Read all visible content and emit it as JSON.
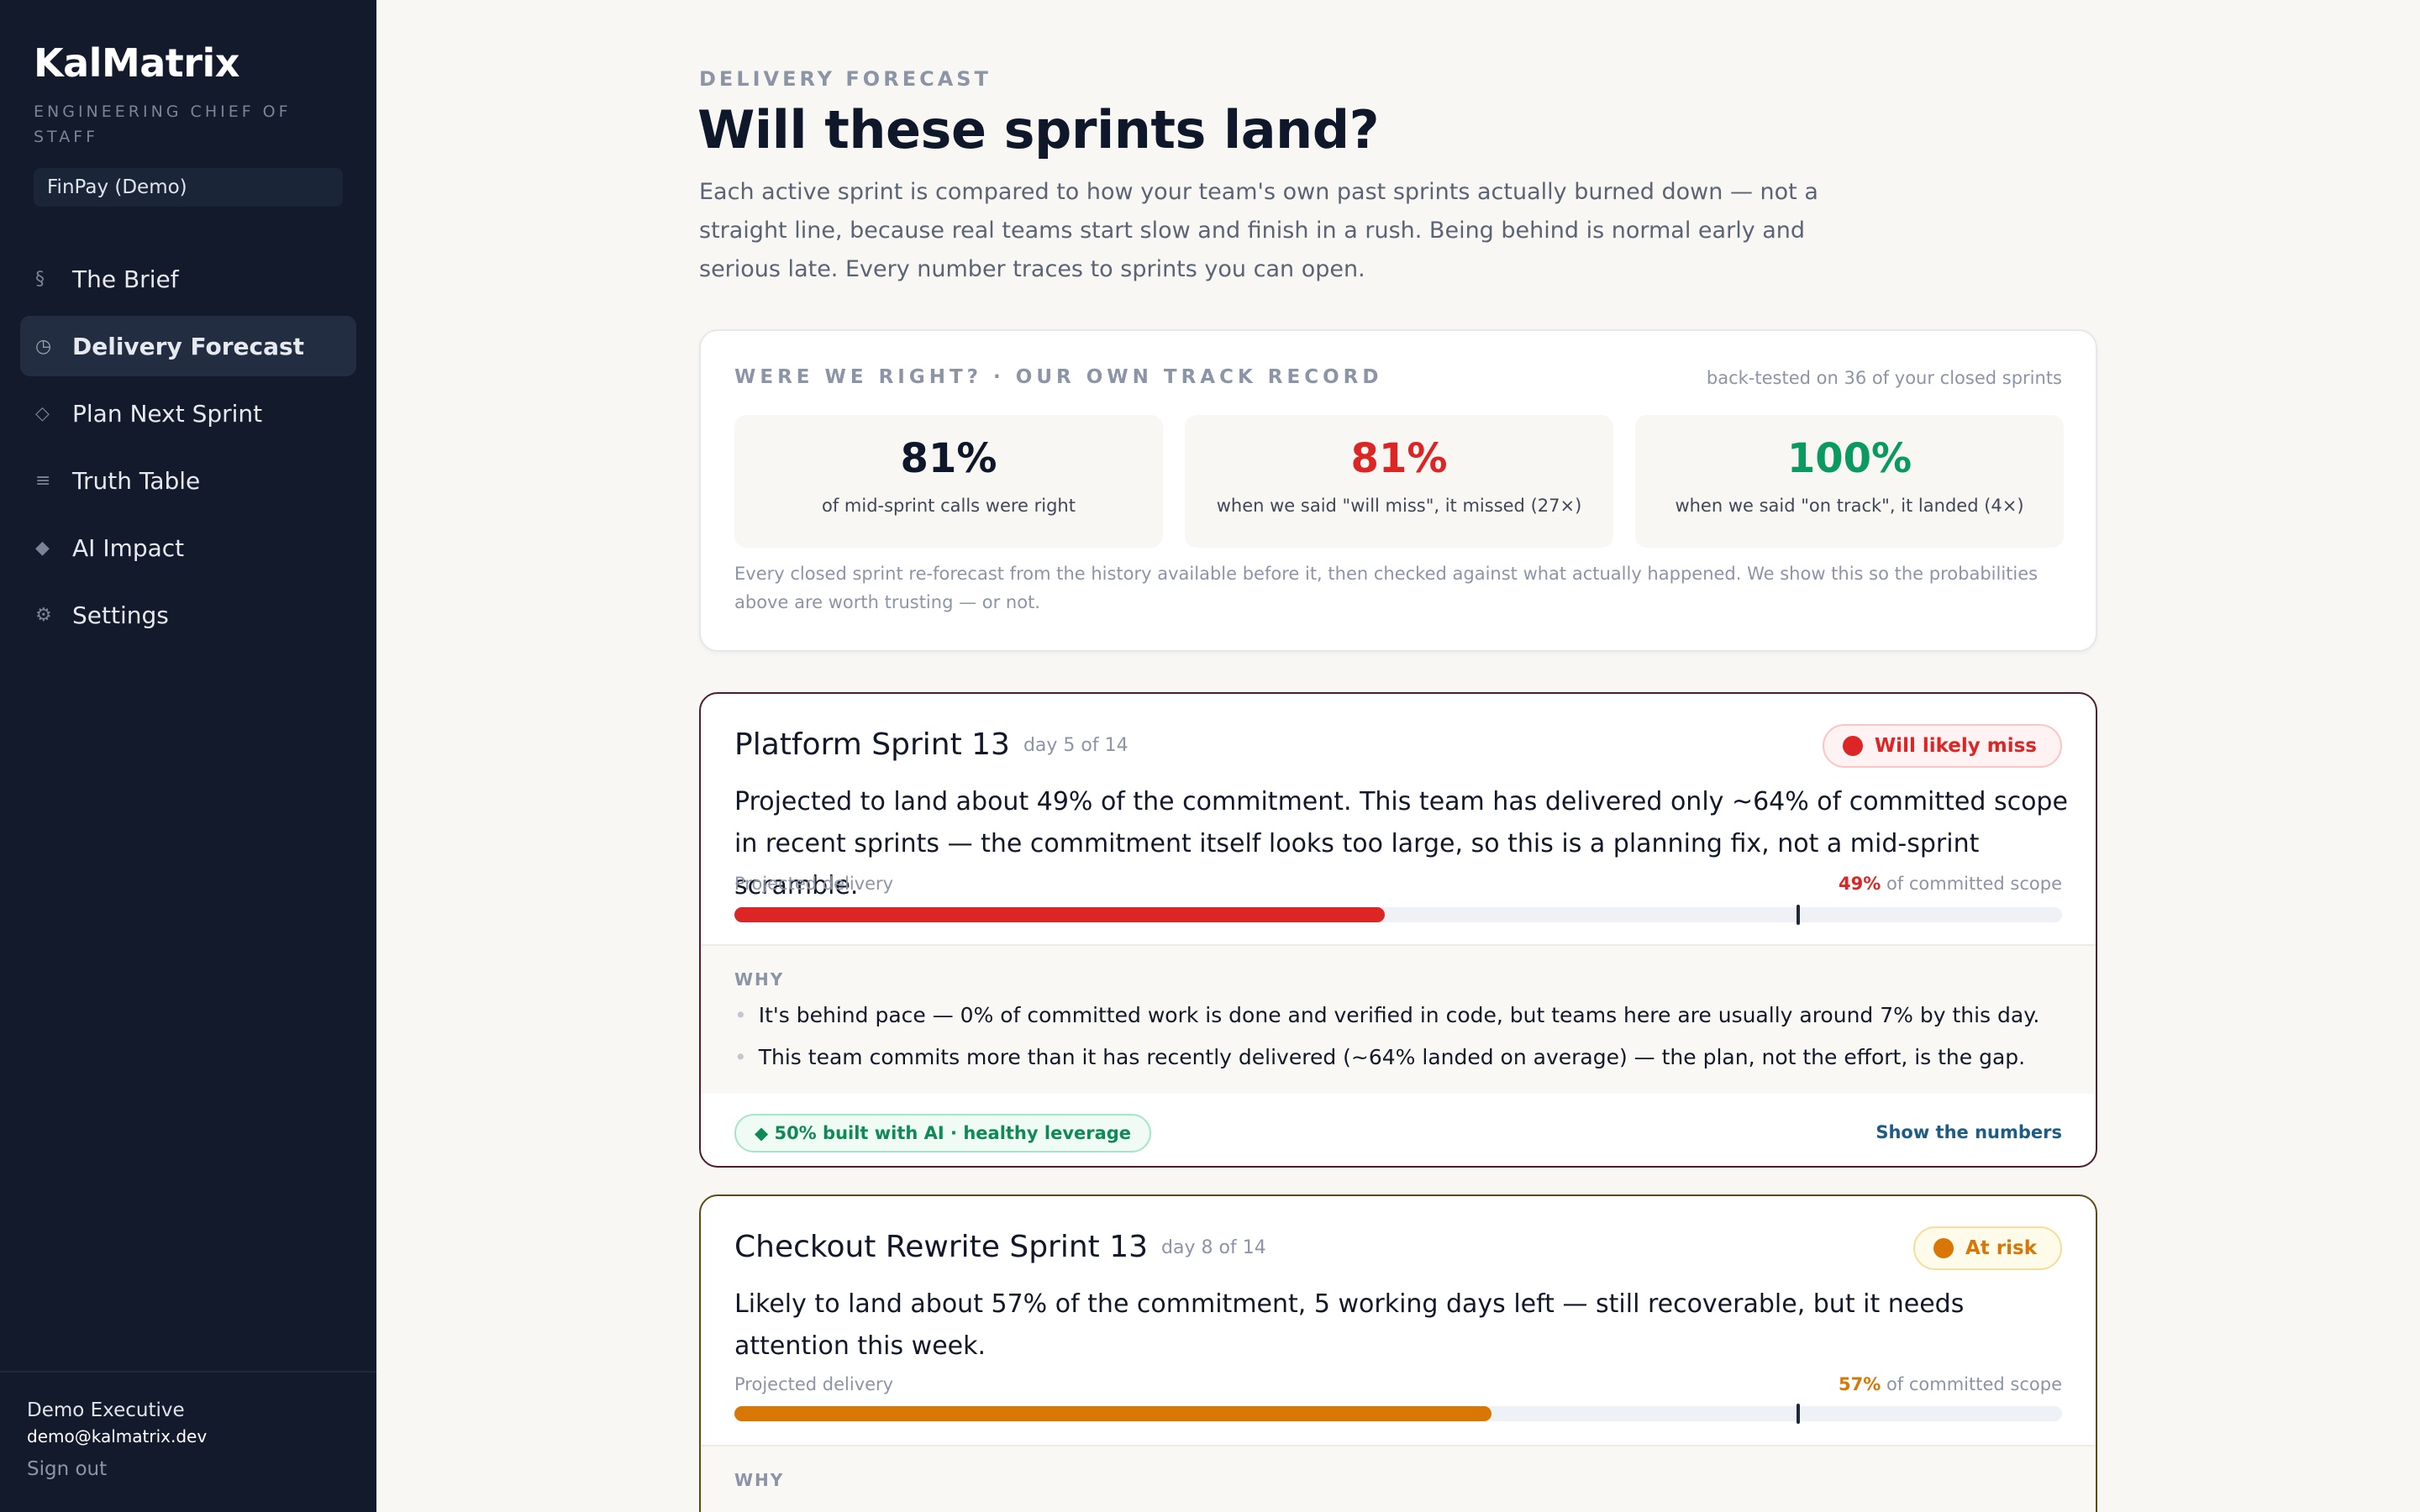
{
  "sidebar": {
    "brand": "KalMatrix",
    "subtitle": "ENGINEERING CHIEF OF STAFF",
    "org": "FinPay (Demo)",
    "nav": [
      {
        "icon": "§",
        "icon_name": "section-icon",
        "label": "The Brief",
        "active": false
      },
      {
        "icon": "◷",
        "icon_name": "clock-icon",
        "label": "Delivery Forecast",
        "active": true
      },
      {
        "icon": "◇",
        "icon_name": "diamond-outline-icon",
        "label": "Plan Next Sprint",
        "active": false
      },
      {
        "icon": "≡",
        "icon_name": "list-icon",
        "label": "Truth Table",
        "active": false
      },
      {
        "icon": "◆",
        "icon_name": "diamond-filled-icon",
        "label": "AI Impact",
        "active": false
      },
      {
        "icon": "⚙",
        "icon_name": "gear-icon",
        "label": "Settings",
        "active": false
      }
    ],
    "user": {
      "name": "Demo Executive",
      "email": "demo@kalmatrix.dev",
      "sign_out": "Sign out"
    }
  },
  "header": {
    "eyebrow": "DELIVERY FORECAST",
    "title": "Will these sprints land?",
    "intro": "Each active sprint is compared to how your team's own past sprints actually burned down — not a straight line, because real teams start slow and finish in a rush. Being behind is normal early and serious late. Every number traces to sprints you can open."
  },
  "track_record": {
    "heading": "WERE WE RIGHT? · OUR OWN TRACK RECORD",
    "note": "back-tested on 36 of your closed sprints",
    "stats": [
      {
        "value": "81%",
        "label": "of mid-sprint calls were right",
        "color": "#0f172a"
      },
      {
        "value": "81%",
        "label": "when we said \"will miss\", it missed (27×)",
        "color": "#dc2626"
      },
      {
        "value": "100%",
        "label": "when we said \"on track\", it landed (4×)",
        "color": "#0a9a5f"
      }
    ],
    "footnote": "Every closed sprint re-forecast from the history available before it, then checked against what actually happened. We show this so the probabilities above are worth trusting — or not."
  },
  "sprints": [
    {
      "name": "Platform Sprint 13",
      "day": "day 5 of 14",
      "status": "Will likely miss",
      "status_color": "#dc2626",
      "status_bg": "#fef2f2",
      "status_border": "#fbc5c5",
      "summary": "Projected to land about 49% of the commitment. This team has delivered only ~64% of committed scope in recent sprints — the commitment itself looks too large, so this is a planning fix, not a mid-sprint scramble.",
      "projected_label": "Projected delivery",
      "pct": "49%",
      "pct_suffix": " of committed scope",
      "fill_fraction": 0.49,
      "marker_fraction": 0.8,
      "bar_color": "#dc2626",
      "why_label": "WHY",
      "why": [
        "It's behind pace — 0% of committed work is done and verified in code, but teams here are usually around 7% by this day.",
        "This team commits more than it has recently delivered (~64% landed on average) — the plan, not the effort, is the gap."
      ],
      "ai_pill": "◆ 50% built with AI · healthy leverage",
      "show_numbers": "Show the numbers"
    },
    {
      "name": "Checkout Rewrite Sprint 13",
      "day": "day 8 of 14",
      "status": "At risk",
      "status_color": "#d97706",
      "status_bg": "#fffbeb",
      "status_border": "#f8dc9a",
      "summary": "Likely to land about 57% of the commitment, 5 working days left — still recoverable, but it needs attention this week.",
      "projected_label": "Projected delivery",
      "pct": "57%",
      "pct_suffix": " of committed scope",
      "fill_fraction": 0.57,
      "marker_fraction": 0.8,
      "bar_color": "#d97706",
      "why_label": "WHY"
    }
  ]
}
